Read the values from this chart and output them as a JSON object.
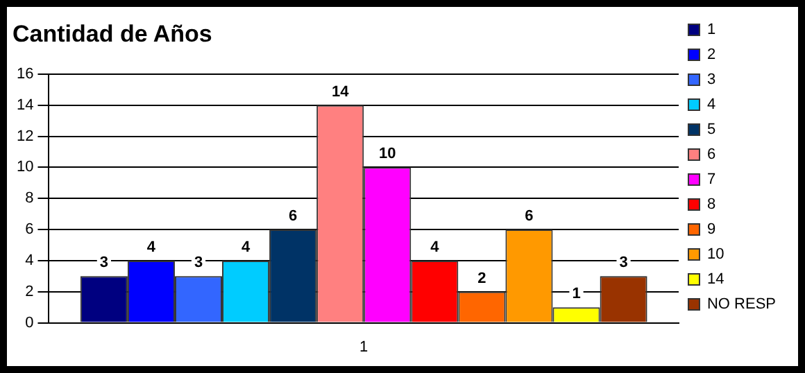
{
  "chart_data": {
    "type": "bar",
    "title": "Cantidad de Años",
    "categories": [
      "1"
    ],
    "series": [
      {
        "name": "1",
        "color": "#000080",
        "values": [
          3
        ]
      },
      {
        "name": "2",
        "color": "#0000ff",
        "values": [
          4
        ]
      },
      {
        "name": "3",
        "color": "#3366ff",
        "values": [
          3
        ]
      },
      {
        "name": "4",
        "color": "#00ccff",
        "values": [
          4
        ]
      },
      {
        "name": "5",
        "color": "#003366",
        "values": [
          6
        ]
      },
      {
        "name": "6",
        "color": "#ff8080",
        "values": [
          14
        ]
      },
      {
        "name": "7",
        "color": "#ff00ff",
        "values": [
          10
        ]
      },
      {
        "name": "8",
        "color": "#ff0000",
        "values": [
          4
        ]
      },
      {
        "name": "9",
        "color": "#ff6600",
        "values": [
          2
        ]
      },
      {
        "name": "10",
        "color": "#ff9900",
        "values": [
          6
        ]
      },
      {
        "name": "14",
        "color": "#ffff00",
        "values": [
          1
        ]
      },
      {
        "name": "NO RESP",
        "color": "#993300",
        "values": [
          3
        ]
      }
    ],
    "ylim": [
      0,
      16
    ],
    "yticks": [
      0,
      2,
      4,
      6,
      8,
      10,
      12,
      14,
      16
    ],
    "grid": "y",
    "legend": "right",
    "data_labels": true
  }
}
